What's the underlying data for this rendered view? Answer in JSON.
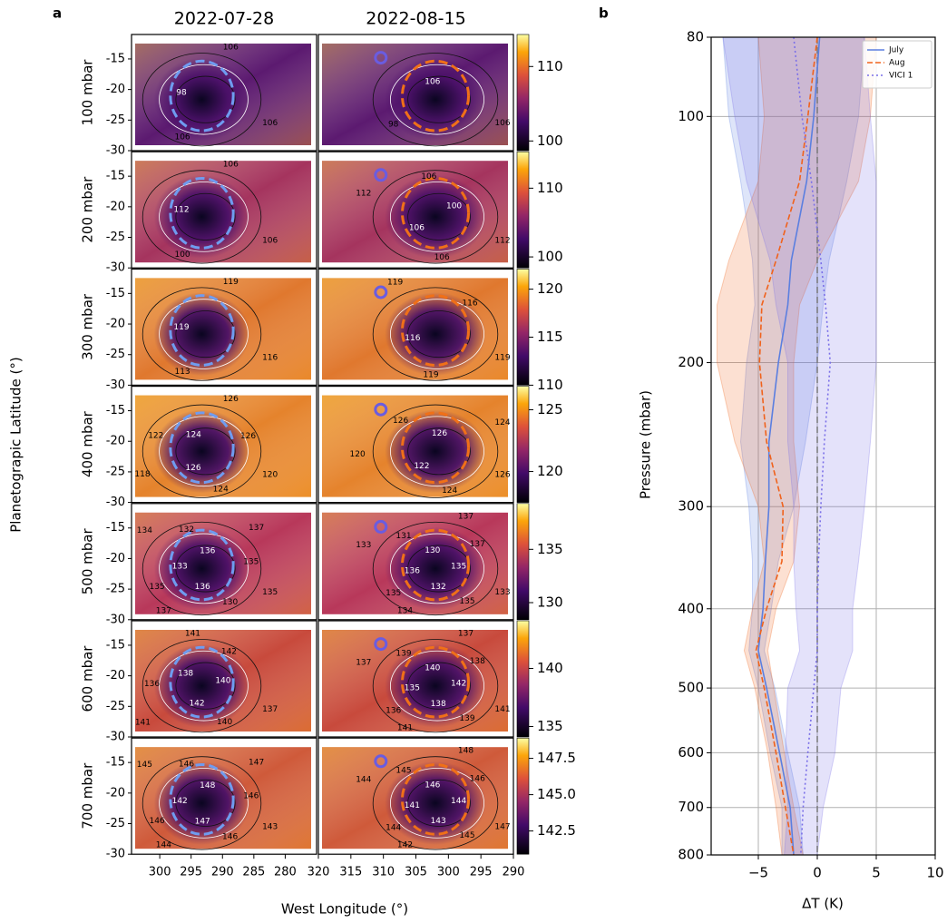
{
  "panel_labels": [
    "a",
    "b"
  ],
  "chart_data": [
    {
      "type": "map-grid",
      "xlabel": "West Longitude (°)",
      "ylabel": "Planetograpic Latitude (°)",
      "ylim": [
        -30,
        -11
      ],
      "yticks": [
        -15,
        -20,
        -25,
        -30
      ],
      "columns": [
        {
          "title": "2022-07-28",
          "xlim": [
            304.5,
            275
          ],
          "xticks": [
            300,
            295,
            290,
            285,
            280
          ]
        },
        {
          "title": "2022-08-15",
          "xlim": [
            320,
            290
          ],
          "xticks": [
            320,
            315,
            310,
            305,
            300,
            295,
            290
          ]
        }
      ],
      "rows": [
        {
          "label": "100 mbar",
          "clim": [
            98.7,
            114.3
          ],
          "cticks": [
            100,
            110
          ],
          "contour_labels": [
            [
              106,
              106,
              98,
              106
            ],
            [
              106,
              98,
              106
            ]
          ]
        },
        {
          "label": "200 mbar",
          "clim": [
            98.4,
            115.3
          ],
          "cticks": [
            100,
            110
          ],
          "contour_labels": [
            [
              106,
              100,
              112,
              106
            ],
            [
              112,
              106,
              106,
              112,
              106,
              100
            ]
          ]
        },
        {
          "label": "300 mbar",
          "clim": [
            110,
            122.1
          ],
          "cticks": [
            110,
            115,
            120
          ],
          "contour_labels": [
            [
              116,
              113,
              119,
              119
            ],
            [
              119,
              119,
              116,
              119,
              116
            ]
          ]
        },
        {
          "label": "400 mbar",
          "clim": [
            117.5,
            126.9
          ],
          "cticks": [
            120,
            125
          ],
          "contour_labels": [
            [
              120,
              124,
              126,
              118,
              122,
              124,
              126,
              126
            ],
            [
              126,
              124,
              122,
              120,
              126,
              126,
              124
            ]
          ]
        },
        {
          "label": "500 mbar",
          "clim": [
            128.4,
            139.3
          ],
          "cticks": [
            130,
            135
          ],
          "contour_labels": [
            [
              135,
              130,
              136,
              137,
              135,
              133,
              134,
              132,
              136,
              137,
              135
            ],
            [
              133,
              135,
              132,
              134,
              135,
              136,
              133,
              131,
              130,
              137,
              137,
              135
            ]
          ]
        },
        {
          "label": "600 mbar",
          "clim": [
            134.1,
            144.1
          ],
          "cticks": [
            135,
            140
          ],
          "contour_labels": [
            [
              137,
              140,
              142,
              141,
              136,
              138,
              141,
              142,
              140
            ],
            [
              141,
              139,
              138,
              141,
              136,
              135,
              137,
              139,
              140,
              137,
              138,
              142
            ]
          ]
        },
        {
          "label": "700 mbar",
          "clim": [
            140.9,
            148.9
          ],
          "cticks": [
            {
              "value": 142.5,
              "label": "142.5"
            },
            {
              "value": 145,
              "label": "145.0"
            },
            {
              "value": 147.5,
              "label": "147.5"
            }
          ],
          "contour_labels": [
            [
              143,
              146,
              147,
              144,
              146,
              142,
              145,
              146,
              148,
              147,
              146
            ],
            [
              147,
              145,
              143,
              142,
              144,
              141,
              144,
              145,
              146,
              148,
              146,
              144
            ]
          ]
        }
      ]
    },
    {
      "type": "line",
      "xlabel": "ΔT (K)",
      "ylabel": "Pressure (mbar)",
      "x": [
        80,
        100,
        120,
        150,
        170,
        200,
        250,
        300,
        350,
        400,
        450,
        500,
        600,
        700,
        800
      ],
      "ylim": [
        80,
        800
      ],
      "y_inverted": true,
      "log_y": true,
      "yticks": [
        80,
        100,
        200,
        300,
        400,
        500,
        600,
        700,
        800
      ],
      "xlim": [
        -9,
        10
      ],
      "xticks": [
        {
          "value": -5,
          "label": "−5"
        },
        0,
        5,
        10
      ],
      "grid": true,
      "vline": 0,
      "legend": "upper right",
      "series": [
        {
          "name": "July",
          "color": "#5b7fe0",
          "linestyle": "solid",
          "values": [
            0.2,
            -0.3,
            -0.9,
            -2.2,
            -2.5,
            -3.3,
            -4.1,
            -4.1,
            -4.4,
            -4.6,
            -5,
            -4.3,
            -3.2,
            -2.3,
            -2
          ],
          "lower": [
            -8,
            -7.5,
            -6.5,
            -5.5,
            -5.3,
            -6,
            -6.5,
            -5.8,
            -5.5,
            -5.5,
            -5.8,
            -5,
            -4,
            -3,
            -3
          ],
          "upper": [
            4,
            3.5,
            2.5,
            1,
            0.5,
            0,
            -1,
            -2,
            -3.3,
            -3.9,
            -4.5,
            -3.6,
            -2.5,
            -1.5,
            -1.2
          ]
        },
        {
          "name": "Aug",
          "color": "#f0621c",
          "linestyle": "dashed",
          "values": [
            0,
            -0.8,
            -1.5,
            -3.5,
            -4.7,
            -4.9,
            -4.3,
            -2.9,
            -3,
            -4.3,
            -5.2,
            -4.5,
            -3.5,
            -2.7,
            -2
          ],
          "lower": [
            -5,
            -4.5,
            -5,
            -7.5,
            -8.5,
            -8.5,
            -7,
            -5,
            -4.5,
            -5.5,
            -6.2,
            -5.3,
            -4.2,
            -3.5,
            -3
          ],
          "upper": [
            5,
            4.5,
            3.5,
            0,
            -1.5,
            -2,
            -2,
            -1.5,
            -2,
            -3.5,
            -4.2,
            -3.7,
            -2.8,
            -2,
            -1.2
          ]
        },
        {
          "name": "VICI 1",
          "color": "#7a6fe8",
          "linestyle": "dotted",
          "values": [
            -2,
            -1.3,
            -0.5,
            0.3,
            0.7,
            1.1,
            0.6,
            0.3,
            0.1,
            0,
            0,
            -0.3,
            -0.8,
            -1.2,
            -1.4
          ],
          "lower": [
            -8,
            -7,
            -6,
            -4,
            -3.5,
            -2.5,
            -2.5,
            -2,
            -2,
            -1.8,
            -1.5,
            -2.5,
            -2.7,
            -2.5,
            -2.8
          ],
          "upper": [
            4,
            4.5,
            5,
            5,
            5,
            5,
            4.5,
            4,
            3.5,
            3,
            3,
            2,
            1.5,
            0.5,
            0
          ]
        }
      ]
    }
  ]
}
